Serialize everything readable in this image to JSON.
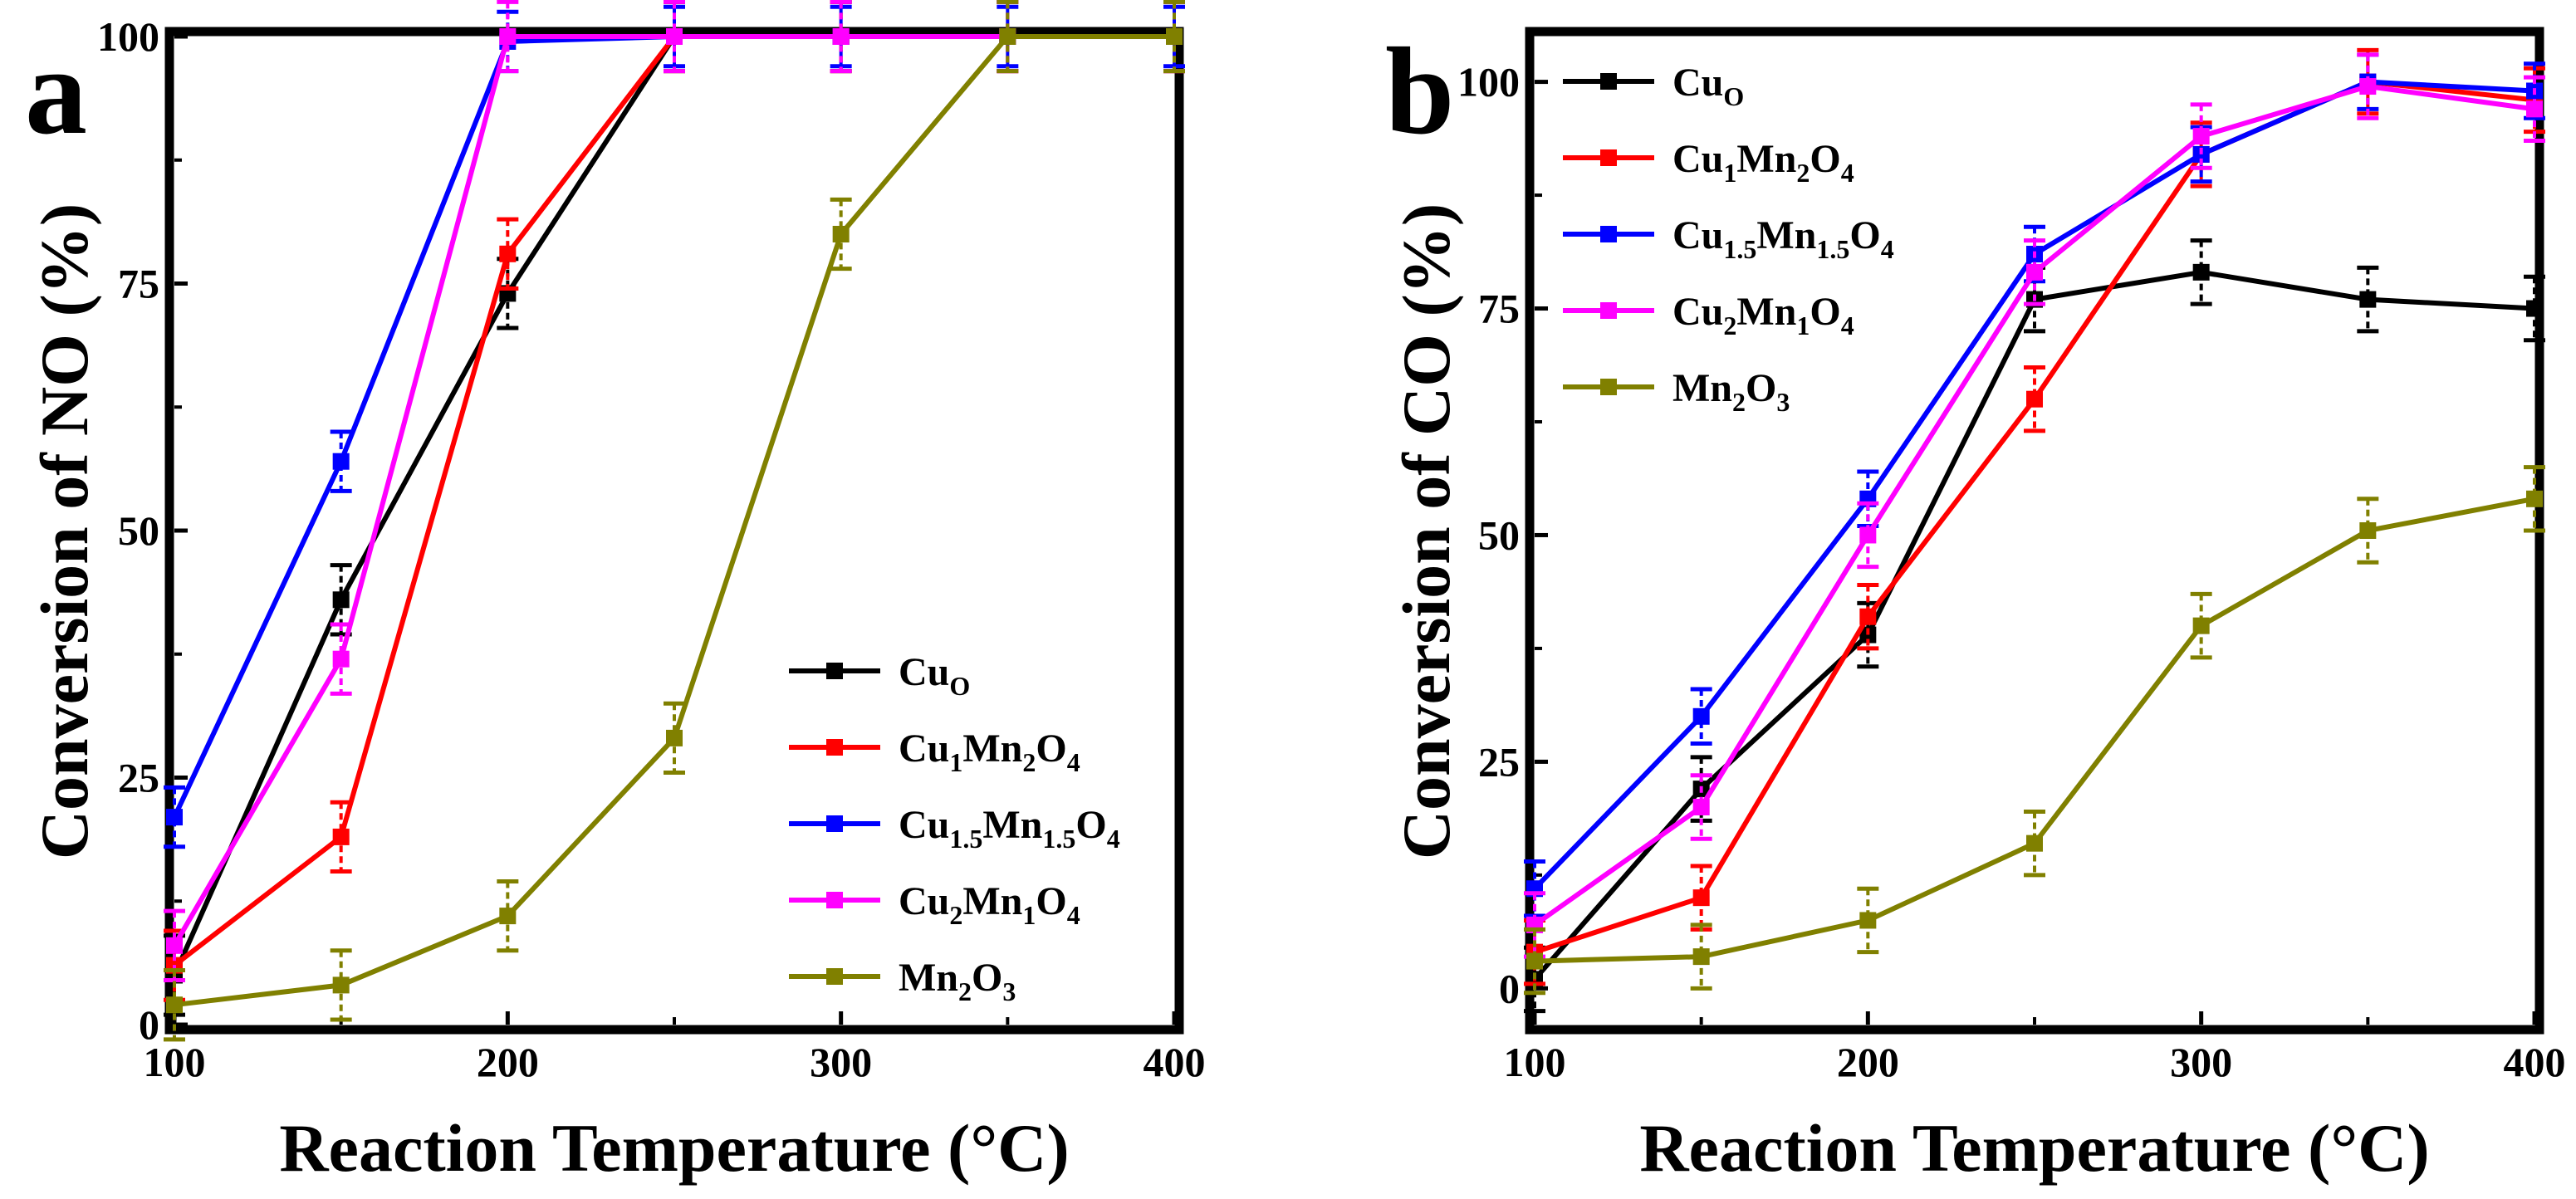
{
  "chart_data": [
    {
      "panel": "a",
      "type": "line",
      "xlabel": "Reaction Temperature (°C)",
      "ylabel": "Conversion of NO (%)",
      "x": [
        100,
        150,
        200,
        250,
        300,
        350,
        400
      ],
      "xlim": [
        100,
        400
      ],
      "ylim": [
        0,
        100
      ],
      "xticks": [
        "100",
        "200",
        "300",
        "400"
      ],
      "yticks": [
        "0",
        "25",
        "50",
        "75",
        "100"
      ],
      "legend_position": "bottom-right",
      "series": [
        {
          "name": "CuO",
          "label": [
            "Cu",
            "O",
            ""
          ],
          "color": "#000000",
          "values": [
            5,
            43,
            74,
            100,
            100,
            100,
            100
          ],
          "error": [
            4,
            3.5,
            3.5,
            3.5,
            3.5,
            3.5,
            3.5
          ]
        },
        {
          "name": "Cu1Mn2O4",
          "label": [
            "Cu",
            "1",
            "Mn",
            "2",
            "O",
            "4"
          ],
          "color": "#ff0000",
          "values": [
            6,
            19,
            78,
            100,
            100,
            100,
            100
          ],
          "error": [
            3.5,
            3.5,
            3.5,
            3.5,
            3.5,
            3.5,
            3.5
          ]
        },
        {
          "name": "Cu1.5Mn1.5O4",
          "label": [
            "Cu",
            "1.5",
            "Mn",
            "1.5",
            "O",
            "4"
          ],
          "color": "#0000ff",
          "values": [
            21,
            57,
            99.5,
            100,
            100,
            100,
            100
          ],
          "error": [
            3,
            3,
            3,
            3,
            3,
            3,
            3
          ]
        },
        {
          "name": "Cu2Mn1O4",
          "label": [
            "Cu",
            "2",
            "Mn",
            "1",
            "O",
            "4"
          ],
          "color": "#ff00ff",
          "values": [
            8,
            37,
            100,
            100,
            100,
            100,
            100
          ],
          "error": [
            3.5,
            3.5,
            3.5,
            3.5,
            3.5,
            3.5,
            3.5
          ]
        },
        {
          "name": "Mn2O3",
          "label": [
            "Mn",
            "2",
            "O",
            "3"
          ],
          "color": "#808000",
          "values": [
            2,
            4,
            11,
            29,
            80,
            100,
            100
          ],
          "error": [
            3.5,
            3.5,
            3.5,
            3.5,
            3.5,
            3.5,
            3.5
          ]
        }
      ]
    },
    {
      "panel": "b",
      "type": "line",
      "xlabel": "Reaction Temperature (°C)",
      "ylabel": "Conversion of CO (%)",
      "x": [
        100,
        150,
        200,
        250,
        300,
        350,
        400
      ],
      "xlim": [
        100,
        400
      ],
      "ylim": [
        -4,
        105
      ],
      "xticks": [
        "100",
        "200",
        "300",
        "400"
      ],
      "yticks": [
        "0",
        "25",
        "50",
        "75",
        "100"
      ],
      "legend_position": "top-left",
      "series": [
        {
          "name": "CuO",
          "label": [
            "Cu",
            "O",
            ""
          ],
          "color": "#000000",
          "values": [
            1,
            22,
            39,
            76,
            79,
            76,
            75
          ],
          "error": [
            3.5,
            3.5,
            3.5,
            3.5,
            3.5,
            3.5,
            3.5
          ]
        },
        {
          "name": "Cu1Mn2O4",
          "label": [
            "Cu",
            "1",
            "Mn",
            "2",
            "O",
            "4"
          ],
          "color": "#ff0000",
          "values": [
            4,
            10,
            41,
            65,
            92,
            100,
            98
          ],
          "error": [
            3.5,
            3.5,
            3.5,
            3.5,
            3.5,
            3.5,
            3.5
          ]
        },
        {
          "name": "Cu1.5Mn1.5O4",
          "label": [
            "Cu",
            "1.5",
            "Mn",
            "1.5",
            "O",
            "4"
          ],
          "color": "#0000ff",
          "values": [
            11,
            30,
            54,
            81,
            92,
            100,
            99
          ],
          "error": [
            3,
            3,
            3,
            3,
            3,
            3,
            3
          ]
        },
        {
          "name": "Cu2Mn1O4",
          "label": [
            "Cu",
            "2",
            "Mn",
            "1",
            "O",
            "4"
          ],
          "color": "#ff00ff",
          "values": [
            7,
            20,
            50,
            79,
            94,
            99.5,
            97
          ],
          "error": [
            3.5,
            3.5,
            3.5,
            3.5,
            3.5,
            3.5,
            3.5
          ]
        },
        {
          "name": "Mn2O3",
          "label": [
            "Mn",
            "2",
            "O",
            "3"
          ],
          "color": "#808000",
          "values": [
            3,
            3.5,
            7.5,
            16,
            40,
            50.5,
            54
          ],
          "error": [
            3.5,
            3.5,
            3.5,
            3.5,
            3.5,
            3.5,
            3.5
          ]
        }
      ]
    }
  ]
}
